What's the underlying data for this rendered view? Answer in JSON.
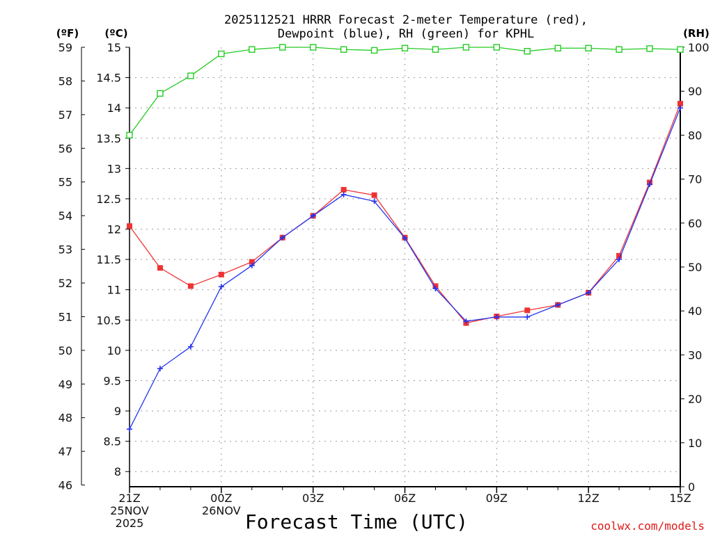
{
  "chart_data": {
    "type": "line",
    "title_line1": "2025112521 HRRR Forecast 2-meter Temperature (red),",
    "title_line2": "Dewpoint (blue), RH (green) for KPHL",
    "xlabel": "Forecast Time (UTC)",
    "credit": "coolwx.com/models",
    "unit_f": "(ºF)",
    "unit_c": "(ºC)",
    "unit_rh": "(RH)",
    "x": [
      0,
      1,
      2,
      3,
      4,
      5,
      6,
      7,
      8,
      9,
      10,
      11,
      12,
      13,
      14,
      15,
      16,
      17,
      18
    ],
    "x_ticks": [
      {
        "x": 0,
        "lines": [
          "21Z",
          "25NOV",
          "2025"
        ]
      },
      {
        "x": 3,
        "lines": [
          "00Z",
          "26NOV"
        ]
      },
      {
        "x": 6,
        "lines": [
          "03Z"
        ]
      },
      {
        "x": 9,
        "lines": [
          "06Z"
        ]
      },
      {
        "x": 12,
        "lines": [
          "09Z"
        ]
      },
      {
        "x": 15,
        "lines": [
          "12Z"
        ]
      },
      {
        "x": 18,
        "lines": [
          "15Z"
        ]
      }
    ],
    "ylim_c": [
      7.75,
      15
    ],
    "yticks_c": [
      "8",
      "8.5",
      "9",
      "9.5",
      "10",
      "10.5",
      "11",
      "11.5",
      "12",
      "12.5",
      "13",
      "13.5",
      "14",
      "14.5",
      "15"
    ],
    "yticks_f": [
      "46",
      "47",
      "48",
      "49",
      "50",
      "51",
      "52",
      "53",
      "54",
      "55",
      "56",
      "57",
      "58",
      "59"
    ],
    "ylim_rh": [
      0,
      100
    ],
    "yticks_rh": [
      "0",
      "10",
      "20",
      "30",
      "40",
      "50",
      "60",
      "70",
      "80",
      "90",
      "100"
    ],
    "series": [
      {
        "name": "Temperature",
        "color": "#ee3333",
        "marker": "square",
        "values": [
          12.05,
          11.36,
          11.06,
          11.25,
          11.46,
          11.86,
          12.22,
          12.65,
          12.56,
          11.86,
          11.06,
          10.45,
          10.56,
          10.66,
          10.75,
          10.95,
          11.56,
          12.77,
          14.07
        ]
      },
      {
        "name": "Dewpoint",
        "color": "#2233ee",
        "marker": "plus",
        "values": [
          8.7,
          9.7,
          10.06,
          11.05,
          11.4,
          11.86,
          12.22,
          12.57,
          12.46,
          11.85,
          11.02,
          10.48,
          10.55,
          10.55,
          10.75,
          10.95,
          11.5,
          12.74,
          14.0
        ]
      },
      {
        "name": "RH",
        "color": "#22cc22",
        "marker": "open-square",
        "axis": "rh",
        "values": [
          80,
          89.5,
          93.5,
          98.5,
          99.5,
          100,
          100,
          99.5,
          99.3,
          99.8,
          99.5,
          100,
          100,
          99.1,
          99.8,
          99.8,
          99.5,
          99.7,
          99.5
        ]
      }
    ]
  }
}
